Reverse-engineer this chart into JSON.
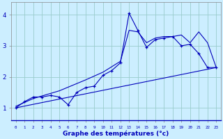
{
  "xlabel": "Graphe des températures (°c)",
  "background_color": "#cceeff",
  "grid_color": "#99cccc",
  "line_color": "#0000bb",
  "x_ticks": [
    0,
    1,
    2,
    3,
    4,
    5,
    6,
    7,
    8,
    9,
    10,
    11,
    12,
    13,
    14,
    15,
    16,
    17,
    18,
    19,
    20,
    21,
    22,
    23
  ],
  "x_tick_labels": [
    "0",
    "1",
    "2",
    "3",
    "4",
    "5",
    "6",
    "7",
    "8",
    "9",
    "10",
    "11",
    "12",
    "13",
    "14",
    "15",
    "16",
    "17",
    "18",
    "19",
    "20",
    "21",
    "22",
    "23"
  ],
  "ylim": [
    0.6,
    4.4
  ],
  "xlim": [
    -0.5,
    23.5
  ],
  "yticks": [
    1,
    2,
    3,
    4
  ],
  "series1": {
    "x": [
      0,
      1,
      2,
      3,
      4,
      5,
      6,
      7,
      8,
      9,
      10,
      11,
      12,
      13,
      14,
      15,
      16,
      17,
      18,
      19,
      20,
      21,
      22,
      23
    ],
    "y": [
      1.0,
      1.2,
      1.35,
      1.35,
      1.4,
      1.35,
      1.1,
      1.5,
      1.65,
      1.7,
      2.05,
      2.2,
      2.45,
      4.05,
      3.5,
      2.95,
      3.2,
      3.25,
      3.3,
      3.0,
      3.05,
      2.75,
      2.3,
      2.3
    ]
  },
  "series2": {
    "x": [
      0,
      23
    ],
    "y": [
      1.0,
      2.3
    ]
  },
  "series3": {
    "x": [
      0,
      2,
      5,
      8,
      10,
      12,
      13,
      14,
      15,
      16,
      17,
      18,
      19,
      20,
      21,
      22,
      23
    ],
    "y": [
      1.05,
      1.3,
      1.55,
      1.9,
      2.15,
      2.5,
      3.5,
      3.45,
      3.1,
      3.25,
      3.3,
      3.3,
      3.35,
      3.1,
      3.45,
      3.1,
      2.3
    ]
  }
}
